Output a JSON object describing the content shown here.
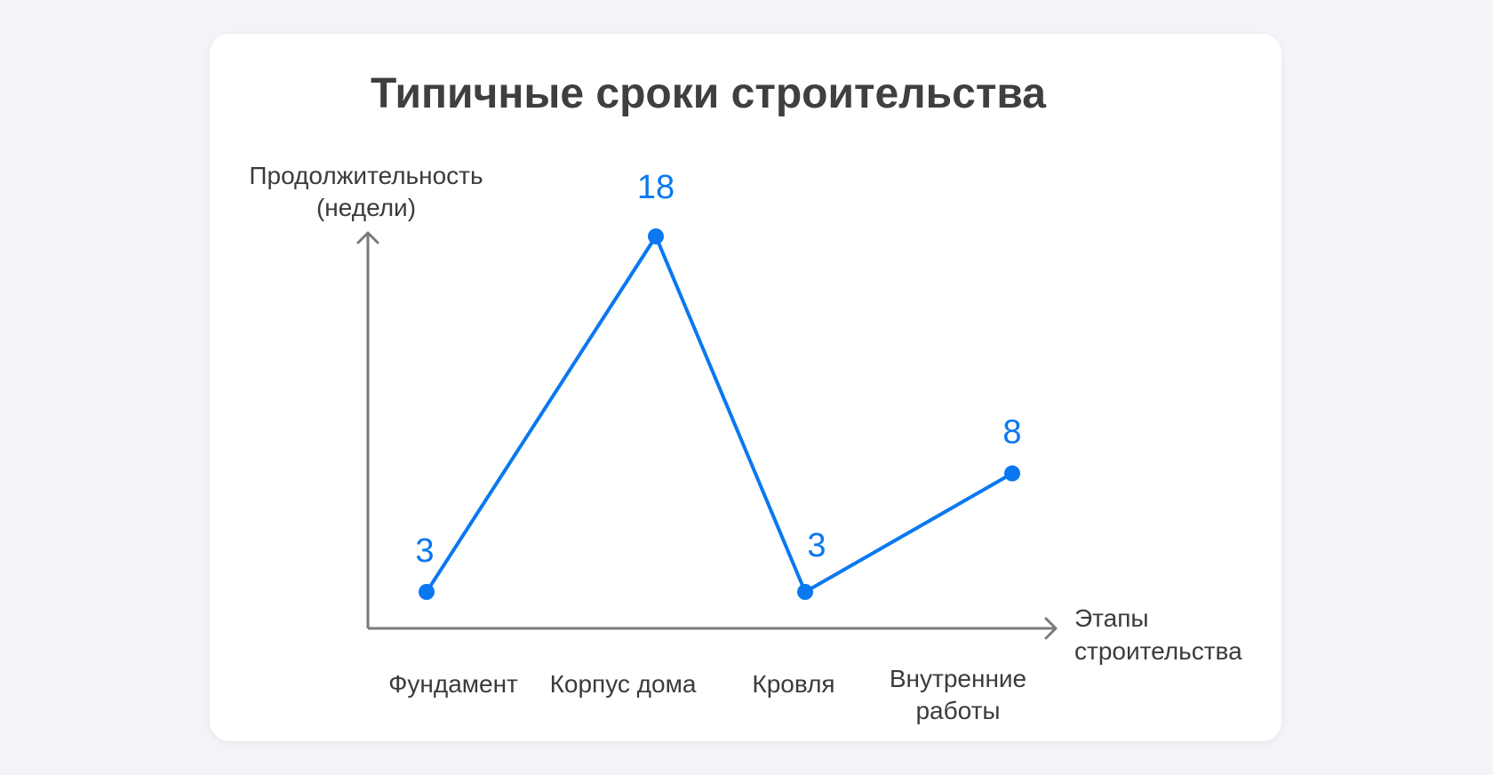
{
  "chart_data": {
    "type": "line",
    "title": "Типичные сроки строительства",
    "ylabel_lines": [
      "Продолжительность",
      "(недели)"
    ],
    "xlabel_lines": [
      "Этапы",
      "строительства"
    ],
    "categories": [
      [
        "Фундамент"
      ],
      [
        "Корпус дома"
      ],
      [
        "Кровля"
      ],
      [
        "Внутренние",
        "работы"
      ]
    ],
    "values": [
      3,
      18,
      3,
      8
    ],
    "data_labels": [
      "3",
      "18",
      "3",
      "8"
    ],
    "ylim": [
      3,
      18
    ],
    "grid": false,
    "legend": "none"
  },
  "colors": {
    "series": "#0a78f0",
    "axis": "#7a7a7a",
    "title": "#3f3f3f",
    "text": "#3b3b3b",
    "card": "#ffffff",
    "background": "#f3f4f8"
  }
}
